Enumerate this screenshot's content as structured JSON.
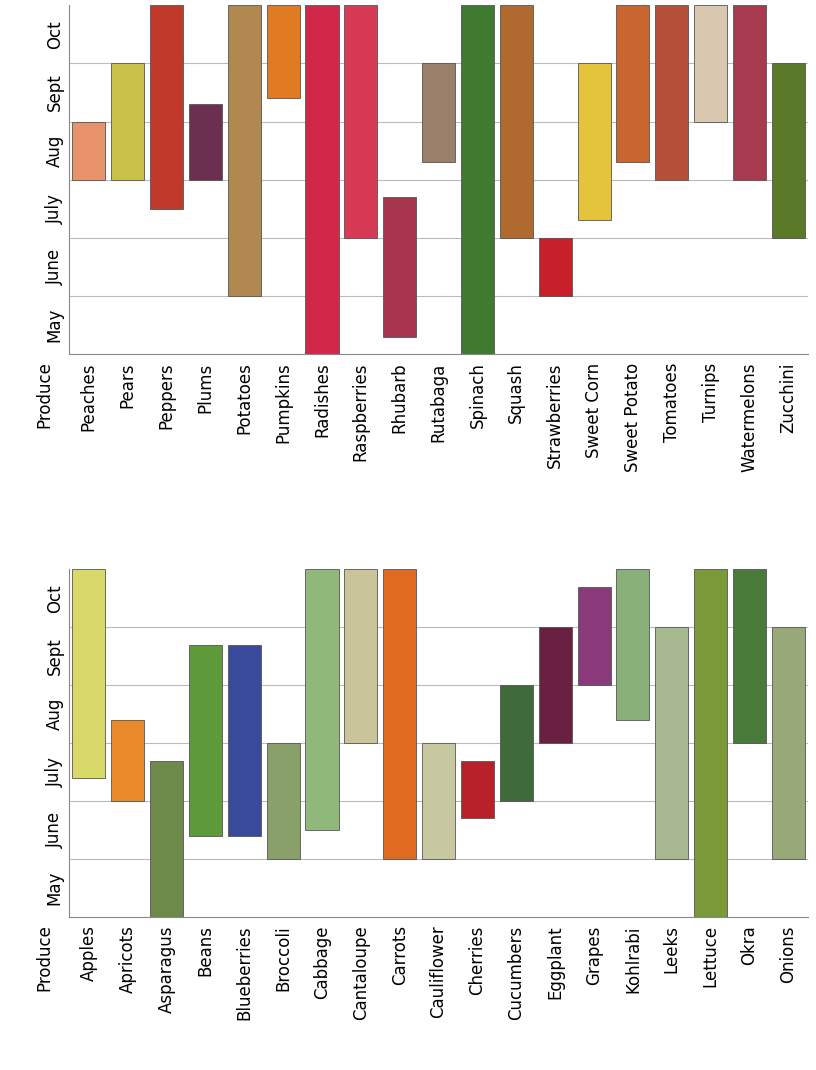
{
  "chart_data": [
    {
      "type": "bar",
      "xlabel": "Produce",
      "categories": [
        "Peaches",
        "Pears",
        "Peppers",
        "Plums",
        "Potatoes",
        "Pumpkins",
        "Radishes",
        "Raspberries",
        "Rhubarb",
        "Rutabaga",
        "Spinach",
        "Squash",
        "Strawberries",
        "Sweet Corn",
        "Sweet Potato",
        "Tomatoes",
        "Turnips",
        "Watermelons",
        "Zucchini"
      ],
      "values": [
        [
          3,
          4
        ],
        [
          3,
          5
        ],
        [
          2.5,
          6
        ],
        [
          3,
          4.3
        ],
        [
          1,
          6
        ],
        [
          4.4,
          6
        ],
        [
          0,
          6
        ],
        [
          2,
          6
        ],
        [
          0.3,
          2.7
        ],
        [
          3.3,
          5
        ],
        [
          0,
          6
        ],
        [
          2,
          6
        ],
        [
          1,
          2
        ],
        [
          2.3,
          5
        ],
        [
          3.3,
          6
        ],
        [
          3,
          6
        ],
        [
          4,
          6
        ],
        [
          3,
          6
        ],
        [
          2,
          5
        ]
      ],
      "colors": [
        "#e8936b",
        "#c9c24a",
        "#c0392b",
        "#6b2f4f",
        "#b08850",
        "#e07b24",
        "#d1284a",
        "#d63a55",
        "#a8344f",
        "#9a7f6a",
        "#3f7a30",
        "#b06a30",
        "#c8202a",
        "#e3c43a",
        "#c9652e",
        "#b5503a",
        "#d8c8b0",
        "#a83a50",
        "#5a7a2a"
      ],
      "ylim": [
        0,
        6
      ],
      "yticks": [
        {
          "value": 0.5,
          "label": "May"
        },
        {
          "value": 1.5,
          "label": "June"
        },
        {
          "value": 2.5,
          "label": "July"
        },
        {
          "value": 3.5,
          "label": "Aug"
        },
        {
          "value": 4.5,
          "label": "Sept"
        },
        {
          "value": 5.5,
          "label": "Oct"
        }
      ],
      "grid": true
    },
    {
      "type": "bar",
      "xlabel": "Produce",
      "categories": [
        "Apples",
        "Apricots",
        "Asparagus",
        "Beans",
        "Blueberries",
        "Broccoli",
        "Cabbage",
        "Cantaloupe",
        "Carrots",
        "Cauliflower",
        "Cherries",
        "Cucumbers",
        "Eggplant",
        "Grapes",
        "Kohlrabi",
        "Leeks",
        "Lettuce",
        "Okra",
        "Onions"
      ],
      "values": [
        [
          2.4,
          6
        ],
        [
          2,
          3.4
        ],
        [
          0,
          2.7
        ],
        [
          1.4,
          4.7
        ],
        [
          1.4,
          4.7
        ],
        [
          1,
          3
        ],
        [
          1.5,
          6
        ],
        [
          3,
          6
        ],
        [
          1,
          6
        ],
        [
          1,
          3
        ],
        [
          1.7,
          2.7
        ],
        [
          2,
          4
        ],
        [
          3,
          5
        ],
        [
          4,
          5.7
        ],
        [
          3.4,
          6
        ],
        [
          1,
          5
        ],
        [
          0,
          6
        ],
        [
          3,
          6
        ],
        [
          1,
          5
        ]
      ],
      "colors": [
        "#d9d96a",
        "#e8892a",
        "#6e8a4a",
        "#5f9a3a",
        "#3a4a9a",
        "#8aa06a",
        "#8fb87a",
        "#c9c49a",
        "#e06a20",
        "#c8c8a0",
        "#b8202a",
        "#3f6a3a",
        "#6a2040",
        "#8a3a7a",
        "#8ab07a",
        "#a8b890",
        "#7a9a3a",
        "#4a7a3a",
        "#98a878"
      ],
      "ylim": [
        0,
        6
      ],
      "yticks": [
        {
          "value": 0.5,
          "label": "May"
        },
        {
          "value": 1.5,
          "label": "June"
        },
        {
          "value": 2.5,
          "label": "July"
        },
        {
          "value": 3.5,
          "label": "Aug"
        },
        {
          "value": 4.5,
          "label": "Sept"
        },
        {
          "value": 5.5,
          "label": "Oct"
        }
      ],
      "grid": true
    }
  ]
}
